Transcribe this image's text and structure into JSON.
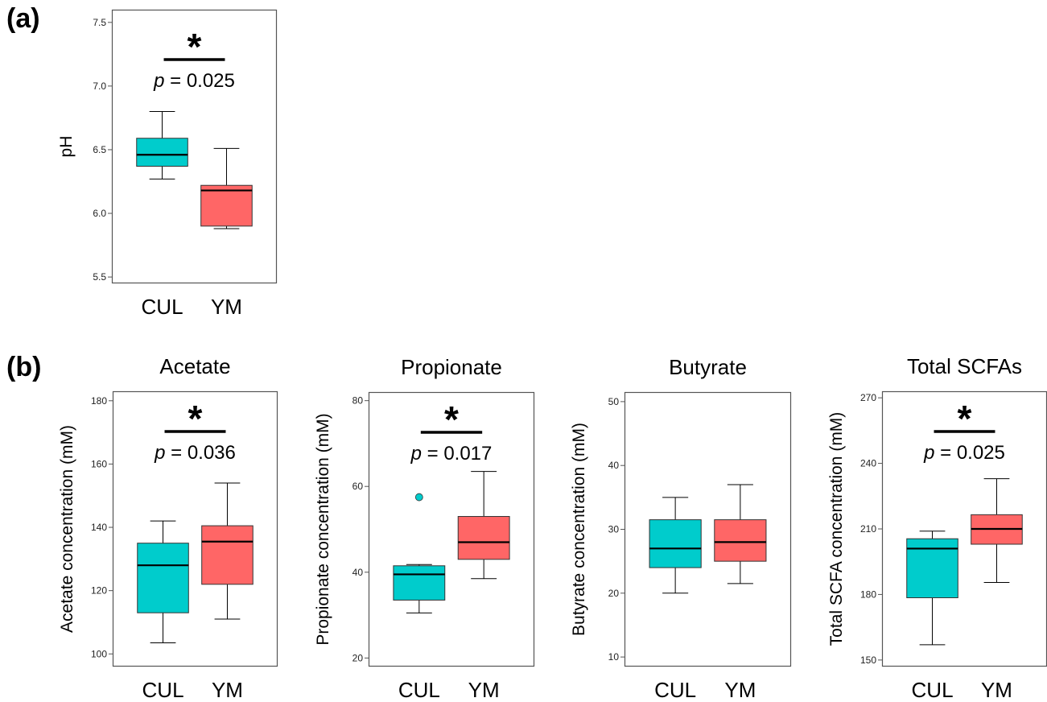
{
  "panel_labels": {
    "a": "(a)",
    "b": "(b)"
  },
  "colors": {
    "CUL": "#00CCCC",
    "YM": "#FF6666",
    "frame": "#555555",
    "line": "#000000"
  },
  "chart_data": [
    {
      "type": "box",
      "panel": "(a)",
      "title": "",
      "xlabel": "",
      "ylabel": "pH",
      "ylim": [
        5.45,
        7.6
      ],
      "yticks": [
        "5.5",
        "6.0",
        "6.5",
        "7.0",
        "7.5"
      ],
      "categories": [
        "CUL",
        "YM"
      ],
      "boxes": [
        {
          "name": "CUL",
          "min": 6.27,
          "q1": 6.37,
          "median": 6.46,
          "q3": 6.59,
          "max": 6.8,
          "outliers": []
        },
        {
          "name": "YM",
          "min": 5.88,
          "q1": 5.9,
          "median": 6.18,
          "q3": 6.22,
          "max": 6.51,
          "outliers": []
        }
      ],
      "significance": {
        "star": "*",
        "p_symbol": "p",
        "p_text": " = 0.025"
      }
    },
    {
      "type": "box",
      "panel": "(b)",
      "title": "Acetate",
      "xlabel": "",
      "ylabel": "Acetate concentration (mM)",
      "ylim": [
        96,
        183
      ],
      "yticks": [
        "100",
        "120",
        "140",
        "160",
        "180"
      ],
      "categories": [
        "CUL",
        "YM"
      ],
      "boxes": [
        {
          "name": "CUL",
          "min": 103.5,
          "q1": 113.0,
          "median": 128.0,
          "q3": 135.0,
          "max": 142.0,
          "outliers": []
        },
        {
          "name": "YM",
          "min": 111.0,
          "q1": 122.0,
          "median": 135.5,
          "q3": 140.5,
          "max": 154.0,
          "outliers": []
        }
      ],
      "significance": {
        "star": "*",
        "p_symbol": "p",
        "p_text": " = 0.036"
      }
    },
    {
      "type": "box",
      "panel": "(b)",
      "title": "Propionate",
      "xlabel": "",
      "ylabel": "Propionate concentration (mM)",
      "ylim": [
        18,
        82
      ],
      "yticks": [
        "20",
        "40",
        "60",
        "80"
      ],
      "categories": [
        "CUL",
        "YM"
      ],
      "boxes": [
        {
          "name": "CUL",
          "min": 30.5,
          "q1": 33.5,
          "median": 39.5,
          "q3": 41.5,
          "max": 41.8,
          "outliers": [
            57.5
          ]
        },
        {
          "name": "YM",
          "min": 38.5,
          "q1": 43.0,
          "median": 47.0,
          "q3": 53.0,
          "max": 63.5,
          "outliers": []
        }
      ],
      "significance": {
        "star": "*",
        "p_symbol": "p",
        "p_text": " = 0.017"
      }
    },
    {
      "type": "box",
      "panel": "(b)",
      "title": "Butyrate",
      "xlabel": "",
      "ylabel": "Butyrate concentration (mM)",
      "ylim": [
        8.5,
        51.5
      ],
      "yticks": [
        "10",
        "20",
        "30",
        "40",
        "50"
      ],
      "categories": [
        "CUL",
        "YM"
      ],
      "boxes": [
        {
          "name": "CUL",
          "min": 20.0,
          "q1": 24.0,
          "median": 27.0,
          "q3": 31.5,
          "max": 35.0,
          "outliers": []
        },
        {
          "name": "YM",
          "min": 21.5,
          "q1": 25.0,
          "median": 28.0,
          "q3": 31.5,
          "max": 37.0,
          "outliers": []
        }
      ],
      "significance": null
    },
    {
      "type": "box",
      "panel": "(b)",
      "title": "Total SCFAs",
      "xlabel": "",
      "ylabel": "Total SCFA concentration (mM)",
      "ylim": [
        147,
        273
      ],
      "yticks": [
        "150",
        "180",
        "210",
        "240",
        "270"
      ],
      "categories": [
        "CUL",
        "YM"
      ],
      "boxes": [
        {
          "name": "CUL",
          "min": 157.0,
          "q1": 178.5,
          "median": 201.0,
          "q3": 205.5,
          "max": 209.0,
          "outliers": []
        },
        {
          "name": "YM",
          "min": 185.5,
          "q1": 203.0,
          "median": 210.0,
          "q3": 216.5,
          "max": 233.0,
          "outliers": []
        }
      ],
      "significance": {
        "star": "*",
        "p_symbol": "p",
        "p_text": " = 0.025"
      }
    }
  ]
}
